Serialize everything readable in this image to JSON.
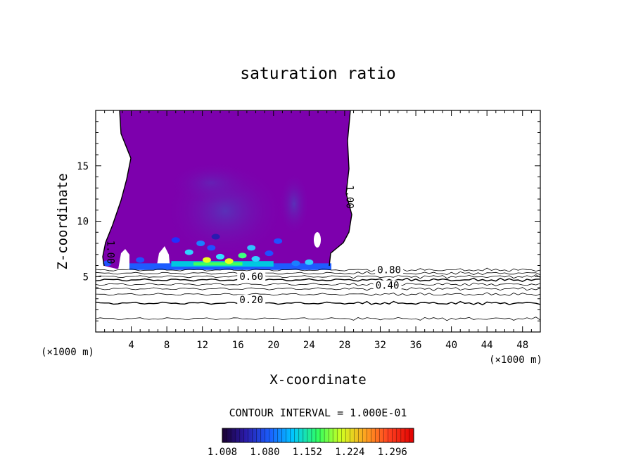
{
  "chart_data": {
    "type": "heatmap",
    "title": "saturation ratio",
    "xlabel": "X-coordinate",
    "ylabel": "Z-coordinate",
    "x_unit_left": "(×1000 m)",
    "x_unit_right": "(×1000 m)",
    "xlim": [
      0,
      50
    ],
    "ylim": [
      0,
      20
    ],
    "x_ticks": [
      4,
      8,
      12,
      16,
      20,
      24,
      28,
      32,
      36,
      40,
      44,
      48
    ],
    "y_ticks": [
      5,
      10,
      15
    ],
    "contour_labels": [
      {
        "text": "0.20",
        "x": 17.5,
        "y": 2.6
      },
      {
        "text": "0.40",
        "x": 32.8,
        "y": 3.9
      },
      {
        "text": "0.60",
        "x": 17.5,
        "y": 4.7
      },
      {
        "text": "0.80",
        "x": 33.0,
        "y": 5.3
      },
      {
        "text": "1.00",
        "x": 28.2,
        "y": 12.2
      },
      {
        "text": "1.00",
        "x": 1.3,
        "y": 7.2
      }
    ],
    "contour_interval_label": "CONTOUR INTERVAL = 1.000E-01",
    "colorbar": {
      "min": 1.008,
      "max": 1.332,
      "tick_labels": [
        "1.008",
        "1.080",
        "1.152",
        "1.224",
        "1.296"
      ],
      "tick_values": [
        1.008,
        1.08,
        1.152,
        1.224,
        1.296
      ],
      "colors": [
        "#1a0030",
        "#2a1aa8",
        "#1a60ff",
        "#00c8ff",
        "#30ff60",
        "#d0ff20",
        "#ffa020",
        "#ff4020",
        "#e00000"
      ]
    },
    "fill_color": "#7d00ad",
    "inner_fill_color": "#6a30b5"
  }
}
